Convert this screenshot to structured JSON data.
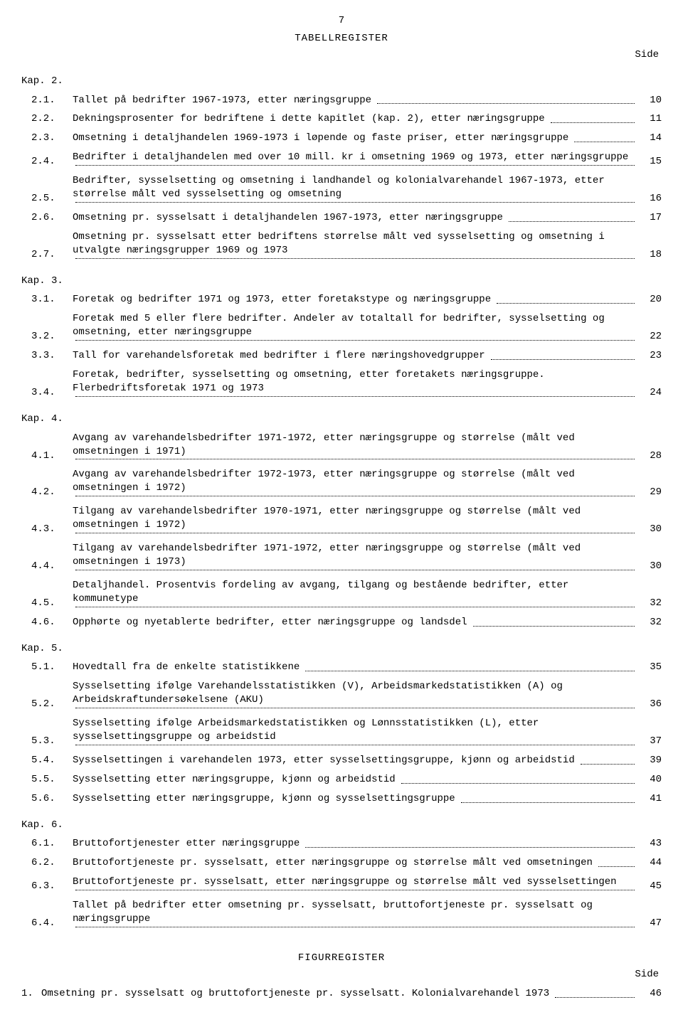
{
  "page_number": "7",
  "main_title": "TABELLREGISTER",
  "side_label": "Side",
  "figure_title": "FIGURREGISTER",
  "chapters": [
    {
      "title": "Kap. 2.",
      "entries": [
        {
          "num": "2.1.",
          "text": "Tallet på bedrifter 1967-1973, etter næringsgruppe",
          "page": "10"
        },
        {
          "num": "2.2.",
          "text": "Dekningsprosenter for bedriftene i dette kapitlet (kap. 2), etter næringsgruppe",
          "page": "11"
        },
        {
          "num": "2.3.",
          "text": "Omsetning i detaljhandelen 1969-1973 i løpende og faste priser, etter næringsgruppe",
          "page": "14"
        },
        {
          "num": "2.4.",
          "text": "Bedrifter i detaljhandelen med over 10 mill. kr i omsetning 1969 og 1973, etter næringsgruppe",
          "page": "15"
        },
        {
          "num": "2.5.",
          "text": "Bedrifter, sysselsetting og omsetning i landhandel og kolonialvarehandel 1967-1973, etter størrelse målt ved sysselsetting og omsetning",
          "page": "16"
        },
        {
          "num": "2.6.",
          "text": "Omsetning pr. sysselsatt i detaljhandelen 1967-1973, etter næringsgruppe",
          "page": "17"
        },
        {
          "num": "2.7.",
          "text": "Omsetning pr. sysselsatt etter bedriftens størrelse målt ved sysselsetting og omsetning i utvalgte næringsgrupper 1969 og 1973",
          "page": "18"
        }
      ]
    },
    {
      "title": "Kap. 3.",
      "entries": [
        {
          "num": "3.1.",
          "text": "Foretak og bedrifter 1971 og 1973, etter foretakstype og næringsgruppe",
          "page": "20"
        },
        {
          "num": "3.2.",
          "text": "Foretak med 5 eller flere bedrifter. Andeler av totaltall for bedrifter, sysselsetting og omsetning, etter næringsgruppe",
          "page": "22"
        },
        {
          "num": "3.3.",
          "text": "Tall for varehandelsforetak med bedrifter i flere næringshovedgrupper",
          "page": "23"
        },
        {
          "num": "3.4.",
          "text": "Foretak, bedrifter, sysselsetting og omsetning, etter foretakets næringsgruppe. Flerbedriftsforetak 1971 og 1973",
          "page": "24"
        }
      ]
    },
    {
      "title": "Kap. 4.",
      "entries": [
        {
          "num": "4.1.",
          "text": "Avgang av varehandelsbedrifter 1971-1972, etter næringsgruppe og størrelse (målt ved omsetningen i 1971)",
          "page": "28"
        },
        {
          "num": "4.2.",
          "text": "Avgang av varehandelsbedrifter 1972-1973, etter næringsgruppe og størrelse (målt ved omsetningen i 1972)",
          "page": "29"
        },
        {
          "num": "4.3.",
          "text": "Tilgang av varehandelsbedrifter 1970-1971, etter næringsgruppe og størrelse (målt ved omsetningen i 1972)",
          "page": "30"
        },
        {
          "num": "4.4.",
          "text": "Tilgang av varehandelsbedrifter 1971-1972, etter næringsgruppe og størrelse (målt ved omsetningen i 1973)",
          "page": "30"
        },
        {
          "num": "4.5.",
          "text": "Detaljhandel. Prosentvis fordeling av avgang, tilgang og bestående bedrifter, etter kommunetype",
          "page": "32"
        },
        {
          "num": "4.6.",
          "text": "Opphørte og nyetablerte bedrifter, etter næringsgruppe og landsdel",
          "page": "32"
        }
      ]
    },
    {
      "title": "Kap. 5.",
      "entries": [
        {
          "num": "5.1.",
          "text": "Hovedtall fra de enkelte statistikkene",
          "page": "35"
        },
        {
          "num": "5.2.",
          "text": "Sysselsetting ifølge Varehandelsstatistikken (V), Arbeidsmarkedstatistikken (A) og Arbeidskraftundersøkelsene (AKU)",
          "page": "36"
        },
        {
          "num": "5.3.",
          "text": "Sysselsetting ifølge Arbeidsmarkedstatistikken og Lønnsstatistikken (L), etter sysselsettingsgruppe og arbeidstid",
          "page": "37"
        },
        {
          "num": "5.4.",
          "text": "Sysselsettingen i varehandelen 1973, etter sysselsettingsgruppe, kjønn og arbeidstid",
          "page": "39"
        },
        {
          "num": "5.5.",
          "text": "Sysselsetting etter næringsgruppe, kjønn og arbeidstid",
          "page": "40"
        },
        {
          "num": "5.6.",
          "text": "Sysselsetting etter næringsgruppe, kjønn og sysselsettingsgruppe",
          "page": "41"
        }
      ]
    },
    {
      "title": "Kap. 6.",
      "entries": [
        {
          "num": "6.1.",
          "text": "Bruttofortjenester etter næringsgruppe",
          "page": "43"
        },
        {
          "num": "6.2.",
          "text": "Bruttofortjeneste pr. sysselsatt, etter næringsgruppe og størrelse målt ved omsetningen",
          "page": "44"
        },
        {
          "num": "6.3.",
          "text": "Bruttofortjeneste pr. sysselsatt, etter næringsgruppe og størrelse målt ved sysselsettingen",
          "page": "45"
        },
        {
          "num": "6.4.",
          "text": "Tallet på bedrifter etter omsetning pr. sysselsatt, bruttofortjeneste pr. sysselsatt og næringsgruppe",
          "page": "47"
        }
      ]
    }
  ],
  "figures": [
    {
      "num": "1.",
      "text": "Omsetning pr. sysselsatt og bruttofortjeneste pr. sysselsatt. Kolonialvarehandel 1973",
      "page": "46"
    }
  ]
}
